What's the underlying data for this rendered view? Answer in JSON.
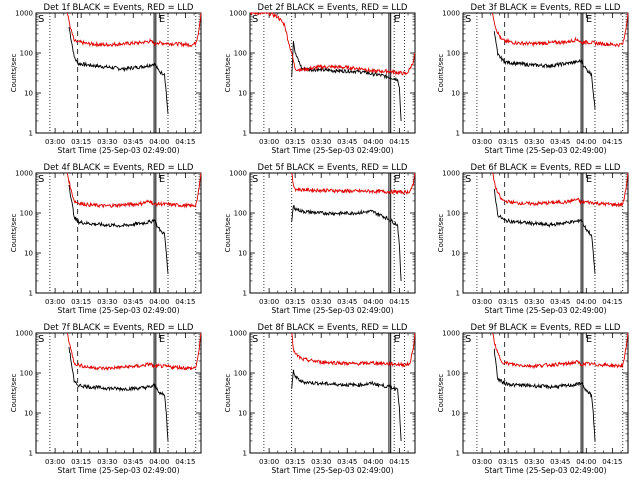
{
  "figure": {
    "x_axis_label": "Start Time (25-Sep-03 02:49:00)",
    "y_axis_label": "Counts/sec",
    "x_tick_labels": [
      "03:00",
      "03:15",
      "03:30",
      "03:45",
      "04:00",
      "04:15"
    ],
    "y_tick_labels": [
      "1",
      "10",
      "100",
      "1000"
    ],
    "marker_labels": [
      "S",
      "E"
    ],
    "colors": {
      "events": "#000000",
      "lld": "#e00000",
      "background": "#ffffff",
      "frame": "#000000"
    }
  },
  "chart_data": [
    {
      "type": "line",
      "title": "Det 1f BLACK = Events, RED = LLD",
      "xlabel": "Start Time (25-Sep-03 02:49:00)",
      "ylabel": "Counts/sec",
      "x_unit": "minutes after 02:49:00",
      "xlim": [
        0,
        95
      ],
      "ylim": [
        1,
        1000
      ],
      "y_scale": "log",
      "x_ticks": [
        "03:00",
        "03:15",
        "03:30",
        "03:45",
        "04:00",
        "04:15"
      ],
      "series": [
        {
          "name": "Events",
          "color": "#000000",
          "x": [
            19,
            22,
            24,
            30,
            40,
            50,
            60,
            66,
            68,
            70,
            72,
            74,
            75,
            76
          ],
          "y": [
            450,
            80,
            55,
            50,
            45,
            40,
            45,
            50,
            55,
            40,
            32,
            30,
            10,
            3
          ]
        },
        {
          "name": "LLD",
          "color": "#e00000",
          "x": [
            18,
            20,
            22,
            24,
            30,
            40,
            50,
            60,
            66,
            68,
            70,
            80,
            90,
            92,
            93,
            94,
            95
          ],
          "y": [
            1000,
            400,
            200,
            190,
            170,
            160,
            170,
            180,
            200,
            170,
            180,
            170,
            160,
            180,
            250,
            450,
            1000
          ]
        }
      ],
      "markers": {
        "dotted_lines": [
          8,
          76,
          92
        ],
        "dashed_lines": [
          24
        ],
        "solid_double_lines": [
          [
            68,
            69
          ]
        ]
      }
    },
    {
      "type": "line",
      "title": "Det 2f BLACK = Events, RED = LLD",
      "xlabel": "Start Time (25-Sep-03 02:49:00)",
      "ylabel": "Counts/sec",
      "x_unit": "minutes after 02:49:00",
      "xlim": [
        0,
        95
      ],
      "ylim": [
        1,
        1000
      ],
      "y_scale": "log",
      "x_ticks": [
        "03:00",
        "03:15",
        "03:30",
        "03:45",
        "04:00",
        "04:15"
      ],
      "series": [
        {
          "name": "Events",
          "color": "#000000",
          "x": [
            24,
            25,
            26,
            30,
            40,
            50,
            60,
            66,
            70,
            75,
            80,
            85,
            86,
            87
          ],
          "y": [
            25,
            200,
            100,
            40,
            38,
            36,
            35,
            33,
            30,
            28,
            25,
            22,
            14,
            2
          ]
        },
        {
          "name": "LLD",
          "color": "#e00000",
          "x": [
            0,
            8,
            12,
            16,
            20,
            22,
            24,
            26,
            30,
            40,
            50,
            60,
            66,
            70,
            80,
            90,
            92,
            94,
            95
          ],
          "y": [
            1000,
            1000,
            950,
            800,
            500,
            200,
            100,
            40,
            38,
            45,
            45,
            42,
            40,
            35,
            35,
            30,
            40,
            60,
            100
          ]
        }
      ],
      "markers": {
        "dotted_lines": [
          8,
          24,
          83,
          89
        ],
        "dashed_lines": [],
        "solid_double_lines": [
          [
            80,
            81
          ]
        ]
      }
    },
    {
      "type": "line",
      "title": "Det 3f BLACK = Events, RED = LLD",
      "xlabel": "Start Time (25-Sep-03 02:49:00)",
      "ylabel": "Counts/sec",
      "x_unit": "minutes after 02:49:00",
      "xlim": [
        0,
        95
      ],
      "ylim": [
        1,
        1000
      ],
      "y_scale": "log",
      "x_ticks": [
        "03:00",
        "03:15",
        "03:30",
        "03:45",
        "04:00",
        "04:15"
      ],
      "series": [
        {
          "name": "Events",
          "color": "#000000",
          "x": [
            18,
            20,
            24,
            30,
            40,
            50,
            60,
            66,
            68,
            70,
            72,
            74,
            75,
            76
          ],
          "y": [
            350,
            90,
            60,
            55,
            50,
            48,
            55,
            60,
            65,
            45,
            35,
            30,
            10,
            4
          ]
        },
        {
          "name": "LLD",
          "color": "#e00000",
          "x": [
            17,
            19,
            22,
            24,
            30,
            40,
            50,
            60,
            66,
            68,
            70,
            80,
            90,
            92,
            93,
            94,
            95
          ],
          "y": [
            1000,
            400,
            220,
            200,
            180,
            170,
            180,
            190,
            220,
            180,
            190,
            170,
            160,
            170,
            250,
            450,
            1000
          ]
        }
      ],
      "markers": {
        "dotted_lines": [
          8,
          76,
          92
        ],
        "dashed_lines": [
          24
        ],
        "solid_double_lines": [
          [
            68,
            69
          ]
        ]
      }
    },
    {
      "type": "line",
      "title": "Det 4f BLACK = Events, RED = LLD",
      "xlabel": "Start Time (25-Sep-03 02:49:00)",
      "ylabel": "Counts/sec",
      "x_unit": "minutes after 02:49:00",
      "xlim": [
        0,
        95
      ],
      "ylim": [
        1,
        1000
      ],
      "y_scale": "log",
      "x_ticks": [
        "03:00",
        "03:15",
        "03:30",
        "03:45",
        "04:00",
        "04:15"
      ],
      "series": [
        {
          "name": "Events",
          "color": "#000000",
          "x": [
            19,
            22,
            24,
            30,
            40,
            50,
            60,
            66,
            68,
            70,
            72,
            74,
            75,
            76
          ],
          "y": [
            500,
            80,
            60,
            55,
            50,
            48,
            55,
            60,
            70,
            45,
            35,
            30,
            10,
            3
          ]
        },
        {
          "name": "LLD",
          "color": "#e00000",
          "x": [
            18,
            20,
            22,
            24,
            30,
            40,
            50,
            60,
            66,
            68,
            70,
            80,
            90,
            92,
            93,
            94,
            95
          ],
          "y": [
            1000,
            400,
            200,
            180,
            160,
            150,
            160,
            170,
            200,
            160,
            170,
            160,
            150,
            160,
            240,
            450,
            1000
          ]
        }
      ],
      "markers": {
        "dotted_lines": [
          8,
          76,
          92
        ],
        "dashed_lines": [
          24
        ],
        "solid_double_lines": [
          [
            68,
            69
          ]
        ]
      }
    },
    {
      "type": "line",
      "title": "Det 5f BLACK = Events, RED = LLD",
      "xlabel": "Start Time (25-Sep-03 02:49:00)",
      "ylabel": "Counts/sec",
      "x_unit": "minutes after 02:49:00",
      "xlim": [
        0,
        95
      ],
      "ylim": [
        1,
        1000
      ],
      "y_scale": "log",
      "x_ticks": [
        "03:00",
        "03:15",
        "03:30",
        "03:45",
        "04:00",
        "04:15"
      ],
      "series": [
        {
          "name": "Events",
          "color": "#000000",
          "x": [
            24,
            25,
            26,
            30,
            40,
            50,
            60,
            66,
            70,
            75,
            80,
            85,
            86,
            87
          ],
          "y": [
            60,
            150,
            130,
            110,
            100,
            98,
            100,
            105,
            110,
            90,
            70,
            50,
            15,
            2
          ]
        },
        {
          "name": "LLD",
          "color": "#e00000",
          "x": [
            24,
            25,
            26,
            30,
            40,
            50,
            60,
            66,
            70,
            80,
            90,
            92,
            94,
            95
          ],
          "y": [
            1000,
            500,
            400,
            380,
            370,
            360,
            350,
            350,
            350,
            340,
            330,
            350,
            500,
            1000
          ]
        }
      ],
      "markers": {
        "dotted_lines": [
          8,
          24,
          83,
          89
        ],
        "dashed_lines": [],
        "solid_double_lines": [
          [
            80,
            81
          ]
        ]
      }
    },
    {
      "type": "line",
      "title": "Det 6f BLACK = Events, RED = LLD",
      "xlabel": "Start Time (25-Sep-03 02:49:00)",
      "ylabel": "Counts/sec",
      "x_unit": "minutes after 02:49:00",
      "xlim": [
        0,
        95
      ],
      "ylim": [
        1,
        1000
      ],
      "y_scale": "log",
      "x_ticks": [
        "03:00",
        "03:15",
        "03:30",
        "03:45",
        "04:00",
        "04:15"
      ],
      "series": [
        {
          "name": "Events",
          "color": "#000000",
          "x": [
            18,
            20,
            24,
            30,
            40,
            50,
            60,
            66,
            68,
            70,
            72,
            74,
            75,
            76
          ],
          "y": [
            400,
            90,
            65,
            60,
            55,
            50,
            58,
            62,
            70,
            45,
            35,
            28,
            10,
            3
          ]
        },
        {
          "name": "LLD",
          "color": "#e00000",
          "x": [
            17,
            19,
            22,
            24,
            30,
            40,
            50,
            60,
            66,
            68,
            70,
            80,
            90,
            92,
            93,
            94,
            95
          ],
          "y": [
            1000,
            400,
            220,
            200,
            180,
            170,
            180,
            190,
            220,
            180,
            190,
            170,
            160,
            170,
            250,
            450,
            1000
          ]
        }
      ],
      "markers": {
        "dotted_lines": [
          8,
          76,
          92
        ],
        "dashed_lines": [
          24
        ],
        "solid_double_lines": [
          [
            68,
            69
          ]
        ]
      }
    },
    {
      "type": "line",
      "title": "Det 7f BLACK = Events, RED = LLD",
      "xlabel": "Start Time (25-Sep-03 02:49:00)",
      "ylabel": "Counts/sec",
      "x_unit": "minutes after 02:49:00",
      "xlim": [
        0,
        95
      ],
      "ylim": [
        1,
        1000
      ],
      "y_scale": "log",
      "x_ticks": [
        "03:00",
        "03:15",
        "03:30",
        "03:45",
        "04:00",
        "04:15"
      ],
      "series": [
        {
          "name": "Events",
          "color": "#000000",
          "x": [
            19,
            22,
            24,
            30,
            40,
            50,
            60,
            66,
            68,
            70,
            72,
            74,
            75,
            76
          ],
          "y": [
            450,
            60,
            50,
            45,
            42,
            40,
            42,
            45,
            50,
            38,
            30,
            28,
            10,
            2
          ]
        },
        {
          "name": "LLD",
          "color": "#e00000",
          "x": [
            18,
            20,
            22,
            24,
            30,
            40,
            50,
            60,
            66,
            68,
            70,
            80,
            90,
            92,
            93,
            94,
            95
          ],
          "y": [
            1000,
            400,
            180,
            160,
            140,
            130,
            140,
            150,
            170,
            140,
            150,
            140,
            130,
            140,
            220,
            400,
            1000
          ]
        }
      ],
      "markers": {
        "dotted_lines": [
          8,
          76,
          92
        ],
        "dashed_lines": [
          24
        ],
        "solid_double_lines": [
          [
            68,
            69
          ]
        ]
      }
    },
    {
      "type": "line",
      "title": "Det 8f BLACK = Events, RED = LLD",
      "xlabel": "Start Time (25-Sep-03 02:49:00)",
      "ylabel": "Counts/sec",
      "x_unit": "minutes after 02:49:00",
      "xlim": [
        0,
        95
      ],
      "ylim": [
        1,
        1000
      ],
      "y_scale": "log",
      "x_ticks": [
        "03:00",
        "03:15",
        "03:30",
        "03:45",
        "04:00",
        "04:15"
      ],
      "series": [
        {
          "name": "Events",
          "color": "#000000",
          "x": [
            24,
            25,
            26,
            30,
            40,
            50,
            60,
            66,
            70,
            75,
            80,
            85,
            86,
            87
          ],
          "y": [
            40,
            120,
            80,
            60,
            55,
            52,
            50,
            52,
            55,
            50,
            45,
            40,
            14,
            2
          ]
        },
        {
          "name": "LLD",
          "color": "#e00000",
          "x": [
            24,
            25,
            26,
            30,
            40,
            50,
            60,
            66,
            70,
            80,
            90,
            92,
            94,
            95
          ],
          "y": [
            1000,
            400,
            300,
            220,
            190,
            180,
            170,
            175,
            180,
            170,
            160,
            170,
            400,
            1000
          ]
        }
      ],
      "markers": {
        "dotted_lines": [
          8,
          24,
          83,
          89
        ],
        "dashed_lines": [],
        "solid_double_lines": [
          [
            80,
            81
          ]
        ]
      }
    },
    {
      "type": "line",
      "title": "Det 9f BLACK = Events, RED = LLD",
      "xlabel": "Start Time (25-Sep-03 02:49:00)",
      "ylabel": "Counts/sec",
      "x_unit": "minutes after 02:49:00",
      "xlim": [
        0,
        95
      ],
      "ylim": [
        1,
        1000
      ],
      "y_scale": "log",
      "x_ticks": [
        "03:00",
        "03:15",
        "03:30",
        "03:45",
        "04:00",
        "04:15"
      ],
      "series": [
        {
          "name": "Events",
          "color": "#000000",
          "x": [
            18,
            20,
            24,
            30,
            40,
            50,
            60,
            66,
            68,
            70,
            72,
            74,
            75,
            76
          ],
          "y": [
            400,
            70,
            55,
            50,
            48,
            45,
            48,
            52,
            58,
            42,
            32,
            28,
            10,
            2
          ]
        },
        {
          "name": "LLD",
          "color": "#e00000",
          "x": [
            17,
            19,
            22,
            24,
            30,
            40,
            50,
            60,
            66,
            68,
            70,
            80,
            90,
            92,
            93,
            94,
            95
          ],
          "y": [
            1000,
            400,
            200,
            180,
            160,
            150,
            160,
            170,
            190,
            160,
            170,
            160,
            150,
            160,
            240,
            450,
            1000
          ]
        }
      ],
      "markers": {
        "dotted_lines": [
          8,
          76,
          92
        ],
        "dashed_lines": [
          24
        ],
        "solid_double_lines": [
          [
            68,
            69
          ]
        ]
      }
    }
  ]
}
